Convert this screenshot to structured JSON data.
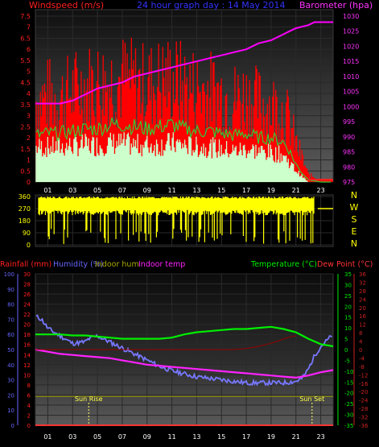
{
  "chart_data": [
    {
      "type": "line",
      "title": "24 hour graph day : 14 May 2014",
      "left_axis_label": "Windspeed (m/s)",
      "right_axis_label": "Barometer (hpa)",
      "x_ticks": [
        "01",
        "03",
        "05",
        "07",
        "09",
        "11",
        "13",
        "15",
        "17",
        "19",
        "21",
        "23"
      ],
      "y_left_ticks": [
        "0",
        "0.5",
        "1",
        "1.5",
        "2",
        "2.5",
        "3",
        "3.5",
        "4",
        "4.5",
        "5",
        "5.5",
        "6",
        "6.5",
        "7",
        "7.5"
      ],
      "y_right_ticks": [
        "975",
        "980",
        "985",
        "990",
        "995",
        "1000",
        "1005",
        "1010",
        "1015",
        "1020",
        "1025",
        "1030"
      ],
      "ylim_left": [
        0,
        7.5
      ],
      "ylim_right": [
        975,
        1030
      ],
      "series": [
        {
          "color": "#ff0000",
          "axis": "left",
          "style": "gust-bars",
          "x": [
            0,
            1,
            2,
            3,
            4,
            5,
            6,
            7,
            8,
            9,
            10,
            11,
            12,
            13,
            14,
            15,
            16,
            17,
            18,
            19,
            20,
            20.5,
            21,
            21.5,
            22,
            23,
            24
          ],
          "y": [
            3.4,
            3.6,
            3.5,
            3.8,
            4.0,
            4.1,
            4.2,
            4.3,
            4.1,
            4.0,
            4.2,
            4.3,
            4.0,
            3.9,
            3.8,
            3.7,
            3.5,
            3.6,
            3.3,
            3.2,
            3.0,
            2.5,
            1.6,
            1.0,
            0.3,
            0.1,
            0.1
          ]
        },
        {
          "color": "#33cc33",
          "axis": "left",
          "style": "line",
          "x": [
            0,
            1,
            2,
            3,
            4,
            5,
            6,
            7,
            8,
            9,
            10,
            11,
            12,
            13,
            14,
            15,
            16,
            17,
            18,
            19,
            20,
            20.5,
            21,
            21.5,
            22,
            23,
            24
          ],
          "y": [
            2.1,
            2.2,
            2.2,
            2.3,
            2.4,
            2.4,
            2.6,
            2.6,
            2.5,
            2.4,
            2.5,
            2.6,
            2.4,
            2.3,
            2.3,
            2.2,
            2.1,
            2.2,
            2.0,
            2.0,
            1.8,
            1.4,
            0.8,
            0.4,
            0.1,
            0.0,
            0.0
          ]
        },
        {
          "color": "#ccffcc",
          "axis": "left",
          "style": "wind-bars",
          "x": [
            0,
            1,
            2,
            3,
            4,
            5,
            6,
            7,
            8,
            9,
            10,
            11,
            12,
            13,
            14,
            15,
            16,
            17,
            18,
            19,
            20,
            20.5,
            21,
            21.5,
            22,
            23,
            24
          ],
          "y": [
            1.8,
            1.8,
            1.8,
            1.9,
            1.9,
            1.9,
            2.0,
            2.0,
            1.9,
            1.9,
            1.9,
            2.0,
            1.9,
            1.8,
            1.8,
            1.7,
            1.6,
            1.7,
            1.6,
            1.5,
            1.4,
            1.0,
            0.6,
            0.3,
            0.0,
            0.0,
            0.0
          ]
        },
        {
          "color": "#ff00ff",
          "axis": "right",
          "style": "line",
          "x": [
            0,
            2,
            3,
            4,
            5,
            6,
            7,
            8,
            9,
            10,
            11,
            12,
            13,
            14,
            15,
            16,
            17,
            18,
            19,
            20,
            20.5,
            21,
            22,
            22.5,
            23,
            24
          ],
          "y": [
            1001,
            1001,
            1002,
            1004,
            1006,
            1007,
            1008,
            1010,
            1011,
            1012,
            1013,
            1014,
            1015,
            1016,
            1017,
            1018,
            1019,
            1021,
            1022,
            1024,
            1025,
            1026,
            1027,
            1028,
            1028,
            1028
          ]
        }
      ]
    },
    {
      "type": "scatter",
      "y_ticks": [
        "0",
        "90",
        "180",
        "270",
        "360"
      ],
      "right_labels": [
        "N",
        "W",
        "S",
        "E",
        "N"
      ],
      "ylim": [
        0,
        360
      ],
      "series": [
        {
          "color": "#ffff00",
          "style": "direction-bars",
          "x": [
            0,
            22.5
          ],
          "y": [
            360,
            360
          ]
        }
      ]
    },
    {
      "type": "line",
      "legend": [
        "Rainfall (mm)",
        "Humidity (%)",
        "Indoor hum",
        "Indoor temp",
        "Temperature (°C)",
        "Dew Point (°C)"
      ],
      "x_ticks": [
        "01",
        "03",
        "05",
        "07",
        "09",
        "11",
        "13",
        "15",
        "17",
        "19",
        "21",
        "23"
      ],
      "humidity_ticks": [
        "0",
        "10",
        "20",
        "30",
        "40",
        "50",
        "60",
        "70",
        "80",
        "90",
        "100"
      ],
      "rain_ticks": [
        "0",
        "2",
        "4",
        "6",
        "8",
        "10",
        "12",
        "14",
        "16",
        "18",
        "20",
        "22",
        "24",
        "26",
        "28",
        "30"
      ],
      "temperature_ticks": [
        "-35",
        "-30",
        "-25",
        "-20",
        "-15",
        "-10",
        "-5",
        "0",
        "5",
        "10",
        "15",
        "20",
        "25",
        "30",
        "35"
      ],
      "dewpoint_ticks": [
        "-36",
        "-32",
        "-28",
        "-24",
        "-20",
        "-16",
        "-12",
        "-8",
        "-4",
        "0",
        "4",
        "8",
        "12",
        "16",
        "20",
        "24",
        "28",
        "32",
        "36"
      ],
      "ylim_humidity": [
        0,
        100
      ],
      "ylim_temperature": [
        -35,
        35
      ],
      "annotations": [
        {
          "label": "Sun Rise",
          "x": 4.3
        },
        {
          "label": "Sun Set",
          "x": 22.3
        }
      ],
      "series": [
        {
          "name": "Humidity (%)",
          "color": "#7777ff",
          "axis": "humidity",
          "x": [
            0,
            0.5,
            1,
            2,
            3,
            4,
            4.3,
            5,
            6,
            7,
            8,
            9,
            10,
            11,
            12,
            13,
            14,
            15,
            16,
            17,
            18,
            19,
            20,
            21,
            21.5,
            22,
            22.5,
            23,
            24
          ],
          "y": [
            72,
            70,
            64,
            59,
            54,
            55,
            57,
            59,
            55,
            51,
            47,
            43,
            39,
            36,
            34,
            32,
            31,
            30,
            29,
            28,
            28,
            28,
            28,
            29,
            31,
            37,
            46,
            52,
            60
          ]
        },
        {
          "name": "Temperature (°C)",
          "color": "#00ee00",
          "axis": "temperature",
          "x": [
            0,
            1,
            2,
            3,
            4,
            5,
            6,
            7,
            8,
            9,
            10,
            11,
            12,
            13,
            14,
            15,
            16,
            17,
            18,
            19,
            20,
            21,
            22,
            23,
            24
          ],
          "y": [
            7,
            7,
            7,
            6.5,
            6.5,
            6,
            5.5,
            5,
            5,
            5,
            5,
            5.5,
            7,
            8,
            8.5,
            9,
            9.5,
            9.5,
            10,
            10.5,
            9.5,
            8,
            5,
            2.5,
            1.5
          ]
        },
        {
          "name": "Indoor temp",
          "color": "#ff22ff",
          "axis": "temperature",
          "x": [
            0,
            1,
            2,
            3,
            4,
            5,
            6,
            7,
            8,
            9,
            10,
            11,
            12,
            13,
            14,
            15,
            16,
            17,
            18,
            19,
            20,
            21,
            22,
            23,
            24
          ],
          "y": [
            0,
            -1,
            -2,
            -2.5,
            -3,
            -3.5,
            -4,
            -5,
            -6,
            -7,
            -7.5,
            -8,
            -8.5,
            -9,
            -9.5,
            -10,
            -10.5,
            -11,
            -11.5,
            -12,
            -12.5,
            -13,
            -12,
            -10.5,
            -9.5
          ]
        },
        {
          "name": "Indoor hum",
          "color": "#999900",
          "axis": "humidity",
          "x": [
            0,
            24
          ],
          "y": [
            19,
            19
          ]
        },
        {
          "name": "Dew Point (°C)",
          "color": "#990000",
          "axis": "dewpoint",
          "x": [
            0,
            15,
            16,
            17,
            18,
            19,
            19.5,
            20,
            20.5,
            21
          ],
          "y": [
            0,
            0,
            0,
            0.5,
            1.5,
            3,
            4,
            5,
            6,
            6.5
          ]
        },
        {
          "name": "Rainfall (mm)",
          "color": "#ff3333",
          "axis": "rain",
          "x": [
            0,
            24
          ],
          "y": [
            0,
            0
          ]
        }
      ]
    }
  ]
}
